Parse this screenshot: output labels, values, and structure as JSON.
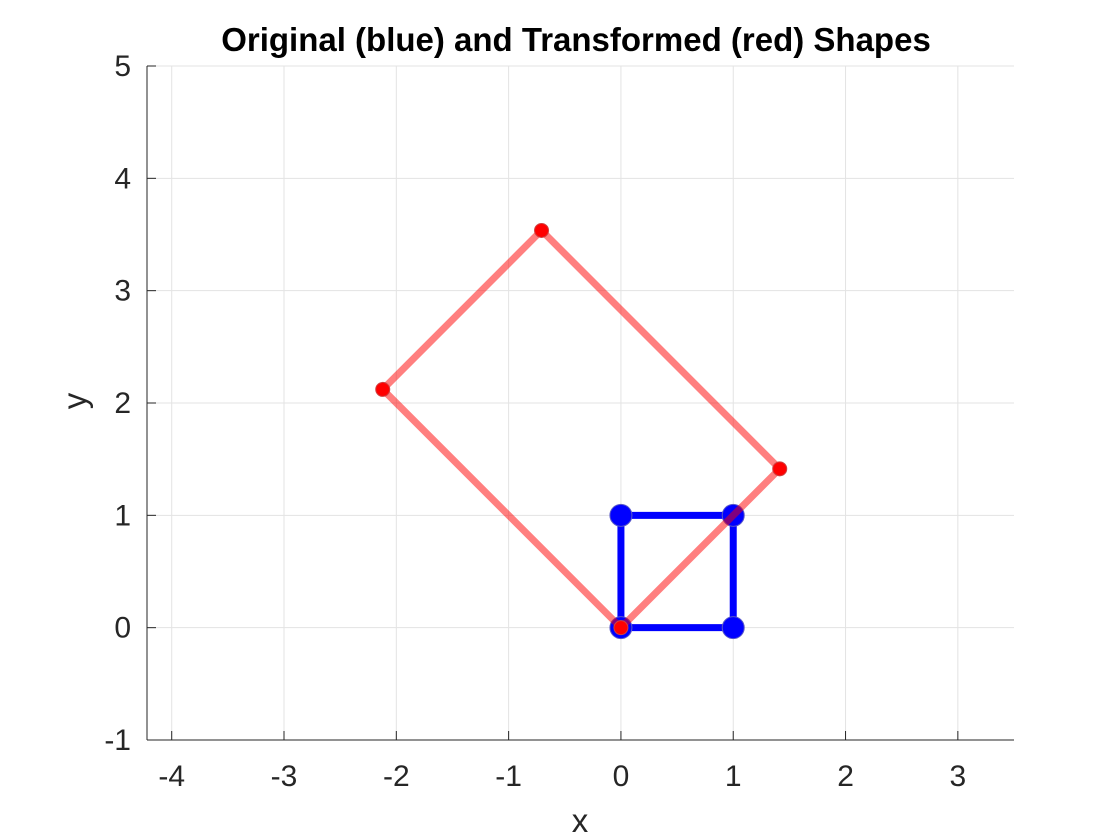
{
  "chart_data": {
    "type": "line",
    "title": "Original (blue) and Transformed (red) Shapes",
    "xlabel": "x",
    "ylabel": "y",
    "xlim": [
      -4.22,
      3.5
    ],
    "ylim": [
      -1,
      5
    ],
    "xticks": [
      -4,
      -3,
      -2,
      -1,
      0,
      1,
      2,
      3
    ],
    "yticks": [
      -1,
      0,
      1,
      2,
      3,
      4,
      5
    ],
    "grid": true,
    "legend": "none",
    "series": [
      {
        "color": "#0000ff",
        "opacity": 1,
        "marker": "circle-large",
        "points": [
          [
            0,
            0
          ],
          [
            1,
            0
          ],
          [
            1,
            1
          ],
          [
            0,
            1
          ],
          [
            0,
            0
          ]
        ]
      },
      {
        "color": "#ff0000",
        "opacity": 0.5,
        "marker": "circle-small",
        "points": [
          [
            0,
            0
          ],
          [
            1.414,
            1.414
          ],
          [
            -0.707,
            3.536
          ],
          [
            -2.121,
            2.121
          ],
          [
            0,
            0
          ]
        ]
      }
    ]
  }
}
